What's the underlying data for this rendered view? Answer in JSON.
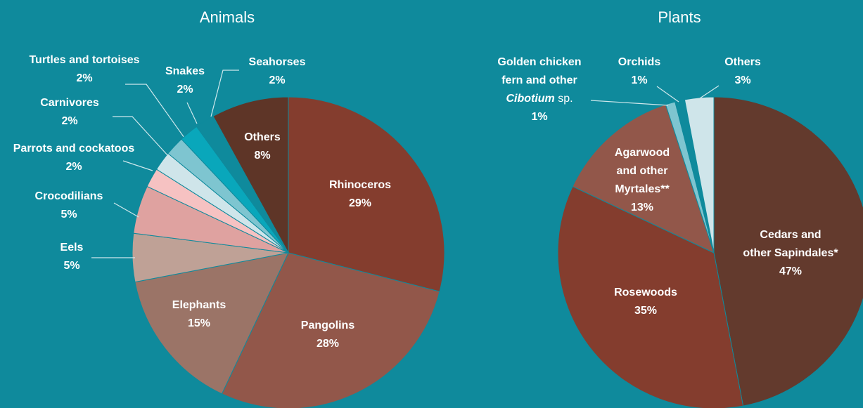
{
  "chart_data": [
    {
      "type": "pie",
      "title": "Animals",
      "slices": [
        {
          "label": [
            "Rhinoceros"
          ],
          "value": 29,
          "pct": "29%",
          "color": "#843d2e"
        },
        {
          "label": [
            "Pangolins"
          ],
          "value": 28,
          "pct": "28%",
          "color": "#92574a"
        },
        {
          "label": [
            "Elephants"
          ],
          "value": 15,
          "pct": "15%",
          "color": "#9b7467"
        },
        {
          "label": [
            "Eels"
          ],
          "value": 5,
          "pct": "5%",
          "color": "#bfa196"
        },
        {
          "label": [
            "Crocodilians"
          ],
          "value": 5,
          "pct": "5%",
          "color": "#dfa2a0"
        },
        {
          "label": [
            "Parrots and cockatoos"
          ],
          "value": 2,
          "pct": "2%",
          "color": "#f6c2c2"
        },
        {
          "label": [
            "Carnivores"
          ],
          "value": 2,
          "pct": "2%",
          "color": "#cfe5ea"
        },
        {
          "label": [
            "Turtles and tortoises"
          ],
          "value": 2,
          "pct": "2%",
          "color": "#7ec5d0"
        },
        {
          "label": [
            "Snakes"
          ],
          "value": 2,
          "pct": "2%",
          "color": "#09a7bb"
        },
        {
          "label": [
            "Seahorses"
          ],
          "value": 2,
          "pct": "2%",
          "color": "#0f8a9c"
        },
        {
          "label": [
            "Others"
          ],
          "value": 8,
          "pct": "8%",
          "color": "#5e3527"
        }
      ]
    },
    {
      "type": "pie",
      "title": "Plants",
      "slices": [
        {
          "label": [
            "Cedars and",
            "other Sapindales*"
          ],
          "value": 47,
          "pct": "47%",
          "color": "#633a2d"
        },
        {
          "label": [
            "Rosewoods"
          ],
          "value": 35,
          "pct": "35%",
          "color": "#843d2e"
        },
        {
          "label": [
            "Agarwood",
            "and other",
            "Myrtales**"
          ],
          "value": 13,
          "pct": "13%",
          "color": "#92574a"
        },
        {
          "label": [
            "Golden chicken",
            "fern and other",
            "Cibotium sp."
          ],
          "value": 1,
          "pct": "1%",
          "color": "#7ec5d0"
        },
        {
          "label": [
            "Orchids"
          ],
          "value": 1,
          "pct": "1%",
          "color": "#0f8a9c"
        },
        {
          "label": [
            "Others"
          ],
          "value": 3,
          "pct": "3%",
          "color": "#cfe5ea"
        }
      ]
    }
  ]
}
